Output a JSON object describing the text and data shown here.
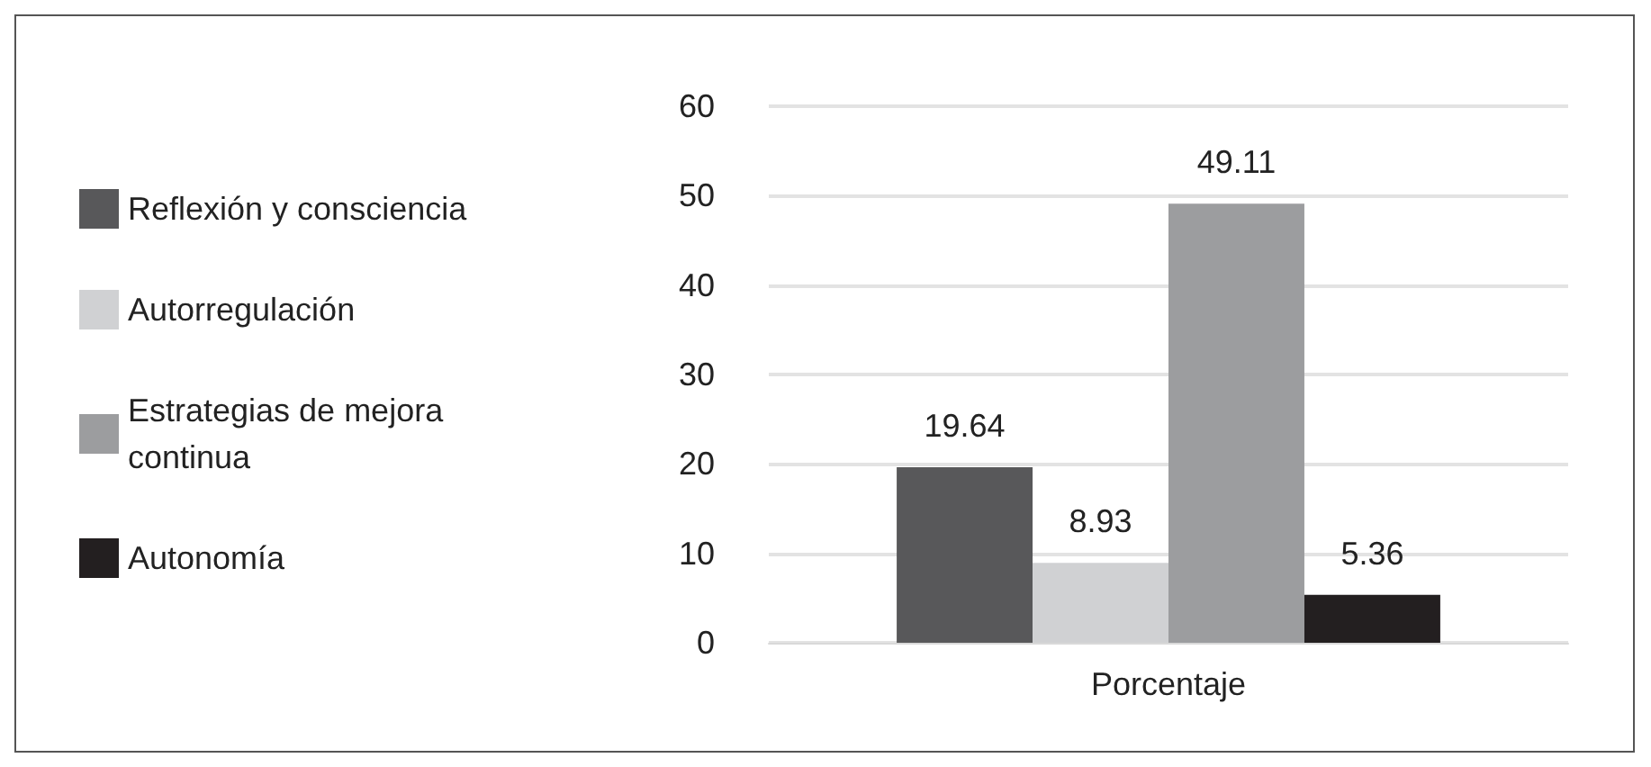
{
  "chart_data": {
    "type": "bar",
    "categories": [
      "Porcentaje"
    ],
    "series": [
      {
        "name": "Reflexión y consciencia",
        "color": "#58585a",
        "values": [
          19.64
        ]
      },
      {
        "name": "Autorregulación",
        "color": "#d0d1d3",
        "values": [
          8.93
        ]
      },
      {
        "name": "Estrategias de mejora continua",
        "color": "#9c9d9f",
        "values": [
          49.11
        ]
      },
      {
        "name": "Autonomía",
        "color": "#231f20",
        "values": [
          5.36
        ]
      }
    ],
    "ylim": [
      0,
      60
    ],
    "yticks": [
      0,
      10,
      20,
      30,
      40,
      50,
      60
    ],
    "grid": "y",
    "legend": "left",
    "data_labels": true
  }
}
